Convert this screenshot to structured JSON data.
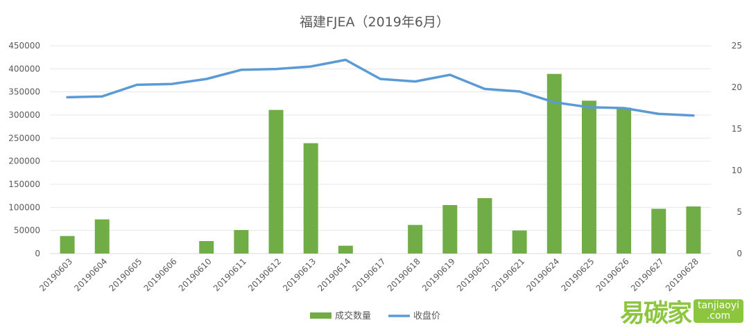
{
  "chart_data": {
    "type": "bar",
    "title": "福建FJEA（2019年6月）",
    "categories": [
      "20190603",
      "20190604",
      "20190605",
      "20190606",
      "20190610",
      "20190611",
      "20190612",
      "20190613",
      "20190614",
      "20190617",
      "20190618",
      "20190619",
      "20190620",
      "20190621",
      "20190624",
      "20190625",
      "20190626",
      "20190627",
      "20190628"
    ],
    "series": [
      {
        "name": "成交数量",
        "type": "bar",
        "axis": "left",
        "color": "#70ad47",
        "values": [
          38000,
          74000,
          0,
          0,
          27000,
          51000,
          311000,
          239000,
          17000,
          0,
          62000,
          105000,
          120000,
          50000,
          389000,
          331000,
          316000,
          97000,
          102000
        ]
      },
      {
        "name": "收盘价",
        "type": "line",
        "axis": "right",
        "color": "#5b9bd5",
        "values": [
          18.8,
          18.9,
          20.3,
          20.4,
          21.0,
          22.1,
          22.2,
          22.5,
          23.3,
          21.0,
          20.7,
          21.5,
          19.8,
          19.5,
          18.2,
          17.6,
          17.5,
          16.8,
          16.6
        ]
      }
    ],
    "ylim_left": [
      0,
      450000
    ],
    "yticks_left": [
      "0",
      "50000",
      "100000",
      "150000",
      "200000",
      "250000",
      "300000",
      "350000",
      "400000",
      "450000"
    ],
    "ylim_right": [
      0,
      25
    ],
    "yticks_right": [
      "0",
      "5",
      "10",
      "15",
      "20",
      "25"
    ],
    "grid": true,
    "legend": "bottom-center"
  },
  "watermark": {
    "cn": "易碳家",
    "en_top": "tanjiaoyi",
    "en_bottom": ".com"
  }
}
